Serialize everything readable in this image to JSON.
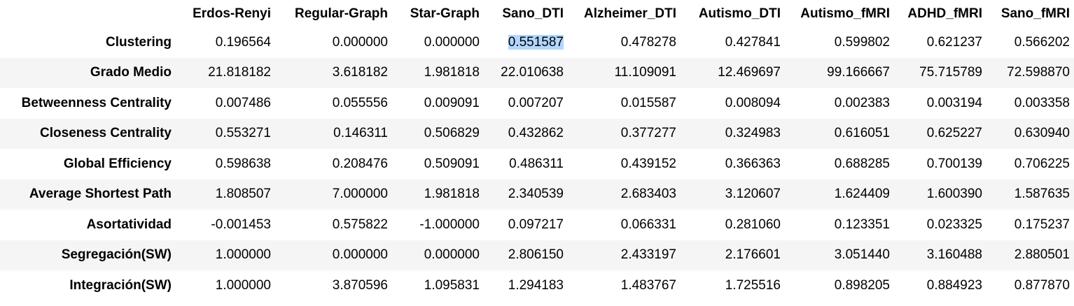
{
  "columns": [
    "Erdos-Renyi",
    "Regular-Graph",
    "Star-Graph",
    "Sano_DTI",
    "Alzheimer_DTI",
    "Autismo_DTI",
    "Autismo_fMRI",
    "ADHD_fMRI",
    "Sano_fMRI"
  ],
  "rows": [
    {
      "label": "Clustering",
      "values": [
        "0.196564",
        "0.000000",
        "0.000000",
        "0.551587",
        "0.478278",
        "0.427841",
        "0.599802",
        "0.621237",
        "0.566202"
      ]
    },
    {
      "label": "Grado Medio",
      "values": [
        "21.818182",
        "3.618182",
        "1.981818",
        "22.010638",
        "11.109091",
        "12.469697",
        "99.166667",
        "75.715789",
        "72.598870"
      ]
    },
    {
      "label": "Betweenness Centrality",
      "values": [
        "0.007486",
        "0.055556",
        "0.009091",
        "0.007207",
        "0.015587",
        "0.008094",
        "0.002383",
        "0.003194",
        "0.003358"
      ]
    },
    {
      "label": "Closeness Centrality",
      "values": [
        "0.553271",
        "0.146311",
        "0.506829",
        "0.432862",
        "0.377277",
        "0.324983",
        "0.616051",
        "0.625227",
        "0.630940"
      ]
    },
    {
      "label": "Global Efficiency",
      "values": [
        "0.598638",
        "0.208476",
        "0.509091",
        "0.486311",
        "0.439152",
        "0.366363",
        "0.688285",
        "0.700139",
        "0.706225"
      ]
    },
    {
      "label": "Average Shortest Path",
      "values": [
        "1.808507",
        "7.000000",
        "1.981818",
        "2.340539",
        "2.683403",
        "3.120607",
        "1.624409",
        "1.600390",
        "1.587635"
      ]
    },
    {
      "label": "Asortatividad",
      "values": [
        "-0.001453",
        "0.575822",
        "-1.000000",
        "0.097217",
        "0.066331",
        "0.281060",
        "0.123351",
        "0.023325",
        "0.175237"
      ]
    },
    {
      "label": "Segregación(SW)",
      "values": [
        "1.000000",
        "0.000000",
        "0.000000",
        "2.806150",
        "2.433197",
        "2.176601",
        "3.051440",
        "3.160488",
        "2.880501"
      ]
    },
    {
      "label": "Integración(SW)",
      "values": [
        "1.000000",
        "3.870596",
        "1.095831",
        "1.294183",
        "1.483767",
        "1.725516",
        "0.898205",
        "0.884923",
        "0.877870"
      ]
    }
  ],
  "selection_color": "#b3d7ff",
  "stripe_color": "#f5f5f5"
}
